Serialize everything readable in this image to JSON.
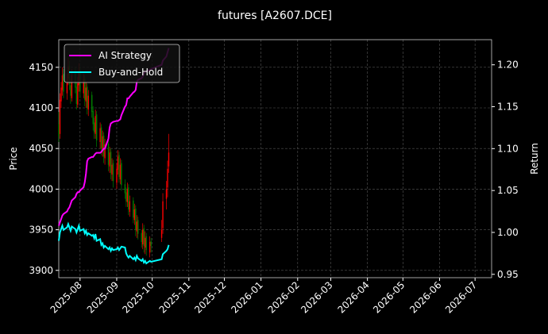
{
  "chart_data": {
    "type": "candlestick",
    "title": "futures [A2607.DCE]",
    "y_label": "Price",
    "y2_label": "Return",
    "x": [
      "2025-07-14",
      "2025-07-15",
      "2025-07-16",
      "2025-07-17",
      "2025-07-18",
      "2025-07-21",
      "2025-07-22",
      "2025-07-23",
      "2025-07-24",
      "2025-07-25",
      "2025-07-28",
      "2025-07-29",
      "2025-07-30",
      "2025-07-31",
      "2025-08-01",
      "2025-08-04",
      "2025-08-05",
      "2025-08-06",
      "2025-08-07",
      "2025-08-08",
      "2025-08-11",
      "2025-08-12",
      "2025-08-13",
      "2025-08-14",
      "2025-08-15",
      "2025-08-18",
      "2025-08-19",
      "2025-08-20",
      "2025-08-21",
      "2025-08-22",
      "2025-08-25",
      "2025-08-26",
      "2025-08-27",
      "2025-08-28",
      "2025-08-29",
      "2025-09-01",
      "2025-09-02",
      "2025-09-03",
      "2025-09-04",
      "2025-09-05",
      "2025-09-08",
      "2025-09-09",
      "2025-09-10",
      "2025-09-11",
      "2025-09-12",
      "2025-09-15",
      "2025-09-16",
      "2025-09-17",
      "2025-09-18",
      "2025-09-19",
      "2025-09-22",
      "2025-09-23",
      "2025-09-24",
      "2025-09-25",
      "2025-09-26",
      "2025-09-29",
      "2025-09-30",
      "2025-10-09",
      "2025-10-10",
      "2025-10-13",
      "2025-10-14",
      "2025-10-15"
    ],
    "open": [
      4080,
      4068,
      4108,
      4122,
      4142,
      4118,
      4136,
      4152,
      4128,
      4112,
      4142,
      4126,
      4104,
      4128,
      4146,
      4118,
      4136,
      4108,
      4126,
      4098,
      4116,
      4096,
      4082,
      4068,
      4092,
      4058,
      4076,
      4048,
      4066,
      4038,
      4056,
      4028,
      4046,
      4018,
      4032,
      4008,
      4024,
      4042,
      4012,
      4032,
      4006,
      3996,
      3984,
      4002,
      3972,
      3986,
      3962,
      3976,
      3948,
      3962,
      3946,
      3932,
      3952,
      3928,
      3942,
      3922,
      3936,
      3940,
      3952,
      3988,
      4002,
      4028
    ],
    "high": [
      4095,
      4118,
      4132,
      4150,
      4148,
      4142,
      4162,
      4158,
      4136,
      4148,
      4150,
      4132,
      4138,
      4155,
      4150,
      4142,
      4140,
      4132,
      4130,
      4122,
      4120,
      4102,
      4088,
      4098,
      4096,
      4082,
      4080,
      4072,
      4070,
      4062,
      4060,
      4052,
      4050,
      4038,
      4036,
      4032,
      4048,
      4046,
      4038,
      4036,
      4012,
      4002,
      4008,
      4006,
      3992,
      3990,
      3982,
      3980,
      3968,
      3966,
      3950,
      3958,
      3956,
      3948,
      3946,
      3942,
      3940,
      3962,
      3995,
      4010,
      4035,
      4068
    ],
    "low": [
      4058,
      4062,
      4100,
      4115,
      4112,
      4110,
      4128,
      4122,
      4105,
      4108,
      4118,
      4098,
      4100,
      4120,
      4112,
      4112,
      4102,
      4100,
      4092,
      4090,
      4088,
      4072,
      4062,
      4062,
      4052,
      4050,
      4042,
      4040,
      4032,
      4030,
      4022,
      4020,
      4012,
      4010,
      4002,
      4000,
      4018,
      4008,
      4006,
      3998,
      3988,
      3978,
      3978,
      3968,
      3966,
      3958,
      3956,
      3942,
      3940,
      3938,
      3928,
      3926,
      3922,
      3920,
      3918,
      3916,
      3922,
      3935,
      3945,
      3975,
      3990,
      4020
    ],
    "close": [
      4065,
      4110,
      4125,
      4140,
      4120,
      4135,
      4150,
      4130,
      4115,
      4140,
      4125,
      4105,
      4130,
      4145,
      4120,
      4135,
      4110,
      4125,
      4100,
      4115,
      4095,
      4080,
      4070,
      4090,
      4060,
      4075,
      4050,
      4065,
      4040,
      4055,
      4030,
      4045,
      4020,
      4030,
      4010,
      4025,
      4040,
      4015,
      4030,
      4005,
      3995,
      3985,
      4000,
      3975,
      3985,
      3965,
      3975,
      3950,
      3960,
      3945,
      3935,
      3950,
      3930,
      3940,
      3925,
      3935,
      3930,
      3950,
      3985,
      4000,
      4025,
      4045
    ],
    "up_color": "#ff0000",
    "down_color": "#008000",
    "series": [
      {
        "name": "AI Strategy",
        "color": "#ff00ff",
        "axis": "y2",
        "values": [
          1.008,
          1.012,
          1.016,
          1.02,
          1.022,
          1.025,
          1.028,
          1.03,
          1.034,
          1.038,
          1.042,
          1.046,
          1.048,
          1.048,
          1.05,
          1.054,
          1.06,
          1.07,
          1.085,
          1.088,
          1.09,
          1.09,
          1.092,
          1.094,
          1.095,
          1.095,
          1.096,
          1.098,
          1.1,
          1.1,
          1.112,
          1.125,
          1.13,
          1.131,
          1.132,
          1.133,
          1.133,
          1.134,
          1.135,
          1.14,
          1.15,
          1.152,
          1.16,
          1.16,
          1.162,
          1.167,
          1.168,
          1.17,
          1.18,
          1.182,
          1.184,
          1.186,
          1.19,
          1.192,
          1.192,
          1.194,
          1.195,
          1.2,
          1.205,
          1.21,
          1.215,
          1.22
        ]
      },
      {
        "name": "Buy-and-Hold",
        "color": "#00ffff",
        "axis": "y2",
        "values": [
          0.99,
          1.0,
          1.004,
          1.008,
          1.003,
          1.006,
          1.01,
          1.006,
          1.002,
          1.007,
          1.004,
          1.0,
          1.004,
          1.008,
          1.002,
          1.004,
          0.999,
          1.002,
          0.997,
          0.999,
          0.996,
          0.997,
          0.993,
          0.998,
          0.99,
          0.992,
          0.985,
          0.987,
          0.982,
          0.984,
          0.98,
          0.982,
          0.978,
          0.981,
          0.979,
          0.98,
          0.982,
          0.979,
          0.981,
          0.983,
          0.982,
          0.975,
          0.972,
          0.97,
          0.972,
          0.968,
          0.97,
          0.967,
          0.972,
          0.969,
          0.966,
          0.968,
          0.964,
          0.966,
          0.963,
          0.966,
          0.965,
          0.968,
          0.974,
          0.978,
          0.98,
          0.985
        ]
      }
    ],
    "xlim": [
      "2025-07-14",
      "2026-07-15"
    ],
    "xticks": [
      {
        "value": "2025-08-01",
        "label": "2025-08"
      },
      {
        "value": "2025-09-01",
        "label": "2025-09"
      },
      {
        "value": "2025-10-01",
        "label": "2025-10"
      },
      {
        "value": "2025-11-01",
        "label": "2025-11"
      },
      {
        "value": "2025-12-01",
        "label": "2025-12"
      },
      {
        "value": "2026-01-01",
        "label": "2026-01"
      },
      {
        "value": "2026-02-01",
        "label": "2026-02"
      },
      {
        "value": "2026-03-01",
        "label": "2026-03"
      },
      {
        "value": "2026-04-01",
        "label": "2026-04"
      },
      {
        "value": "2026-05-01",
        "label": "2026-05"
      },
      {
        "value": "2026-06-01",
        "label": "2026-06"
      },
      {
        "value": "2026-07-01",
        "label": "2026-07"
      }
    ],
    "ylim": [
      3891,
      4184
    ],
    "yticks": [
      3900,
      3950,
      4000,
      4050,
      4100,
      4150
    ],
    "y2lim": [
      0.946,
      1.23
    ],
    "y2ticks": [
      0.95,
      {
        "value": 1,
        "label": "1.00"
      },
      1.05,
      {
        "value": 1.1,
        "label": "1.10"
      },
      1.15,
      {
        "value": 1.2,
        "label": "1.20"
      }
    ],
    "grid": true,
    "legend": "upper left"
  }
}
